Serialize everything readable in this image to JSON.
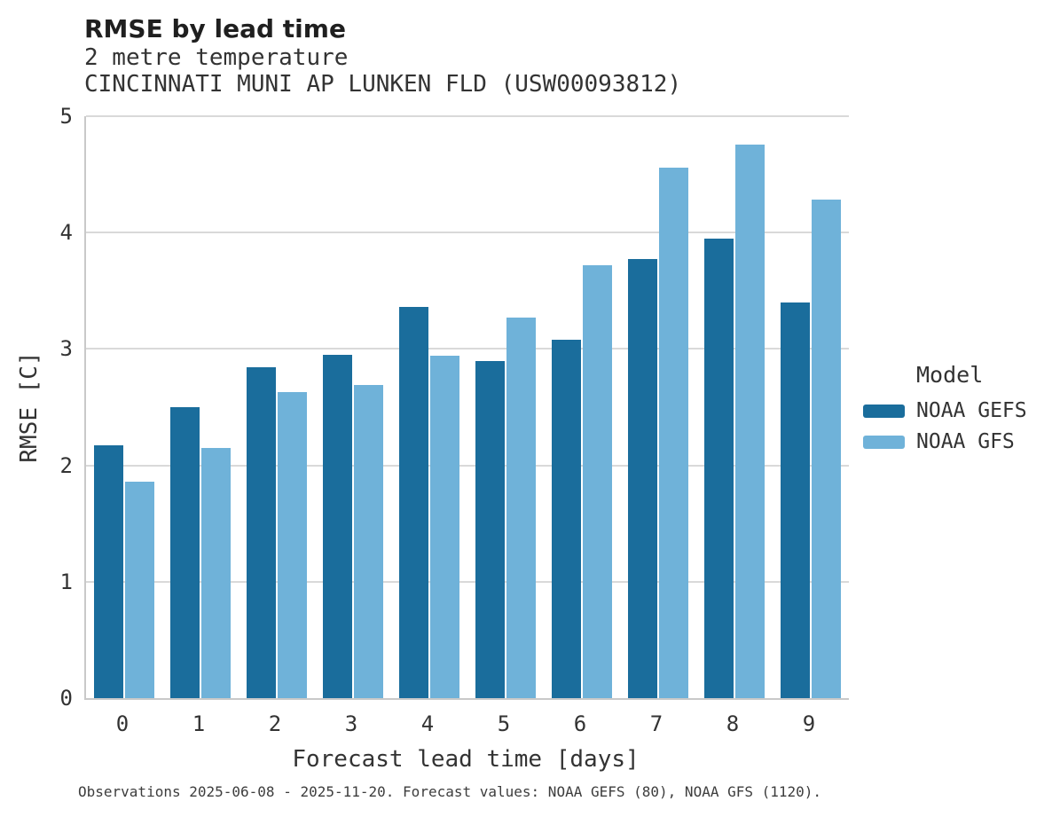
{
  "header": {
    "title": "RMSE by lead time",
    "subtitle_variable": "2 metre temperature",
    "subtitle_station": "CINCINNATI MUNI AP LUNKEN FLD (USW00093812)"
  },
  "chart_data": {
    "type": "bar",
    "title": "RMSE by lead time",
    "categories": [
      "0",
      "1",
      "2",
      "3",
      "4",
      "5",
      "6",
      "7",
      "8",
      "9"
    ],
    "series": [
      {
        "name": "NOAA GEFS",
        "color": "#1a6d9c",
        "values": [
          2.17,
          2.5,
          2.84,
          2.95,
          3.36,
          2.9,
          3.08,
          3.77,
          3.95,
          3.4
        ]
      },
      {
        "name": "NOAA GFS",
        "color": "#6fb2d9",
        "values": [
          1.86,
          2.15,
          2.63,
          2.69,
          2.94,
          3.27,
          3.72,
          4.56,
          4.76,
          4.28
        ]
      }
    ],
    "xlabel": "Forecast lead time [days]",
    "ylabel": "RMSE [C]",
    "ylim": [
      0,
      5
    ],
    "yticks": [
      0,
      1,
      2,
      3,
      4,
      5
    ],
    "legend_title": "Model",
    "legend_position": "right",
    "grid": true,
    "grid_color": "#d9d9d9",
    "spine_color": "#c9c9c9",
    "background_color": "#ffffff"
  },
  "footer": {
    "note": "Observations 2025-06-08 - 2025-11-20. Forecast values: NOAA GEFS (80), NOAA GFS (1120)."
  }
}
